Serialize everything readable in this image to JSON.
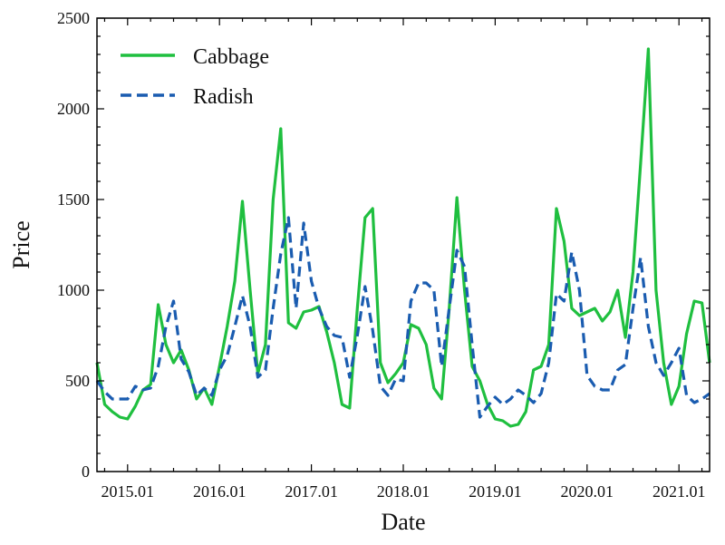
{
  "chart_data": {
    "type": "line",
    "title": "",
    "xlabel": "Date",
    "ylabel": "Price",
    "ylim": [
      0,
      2500
    ],
    "yticks": [
      0,
      500,
      1000,
      1500,
      2000,
      2500
    ],
    "xticks": [
      "2015.01",
      "2016.01",
      "2017.01",
      "2018.01",
      "2019.01",
      "2020.01",
      "2021.01"
    ],
    "xrange": [
      "2014.09",
      "2021.05"
    ],
    "grid": false,
    "legend_position": "top-left",
    "x": [
      "2014.09",
      "2014.10",
      "2014.11",
      "2014.12",
      "2015.01",
      "2015.02",
      "2015.03",
      "2015.04",
      "2015.05",
      "2015.06",
      "2015.07",
      "2015.08",
      "2015.09",
      "2015.10",
      "2015.11",
      "2015.12",
      "2016.01",
      "2016.02",
      "2016.03",
      "2016.04",
      "2016.05",
      "2016.06",
      "2016.07",
      "2016.08",
      "2016.09",
      "2016.10",
      "2016.11",
      "2016.12",
      "2017.01",
      "2017.02",
      "2017.03",
      "2017.04",
      "2017.05",
      "2017.06",
      "2017.07",
      "2017.08",
      "2017.09",
      "2017.10",
      "2017.11",
      "2017.12",
      "2018.01",
      "2018.02",
      "2018.03",
      "2018.04",
      "2018.05",
      "2018.06",
      "2018.07",
      "2018.08",
      "2018.09",
      "2018.10",
      "2018.11",
      "2018.12",
      "2019.01",
      "2019.02",
      "2019.03",
      "2019.04",
      "2019.05",
      "2019.06",
      "2019.07",
      "2019.08",
      "2019.09",
      "2019.10",
      "2019.11",
      "2019.12",
      "2020.01",
      "2020.02",
      "2020.03",
      "2020.04",
      "2020.05",
      "2020.06",
      "2020.07",
      "2020.08",
      "2020.09",
      "2020.10",
      "2020.11",
      "2020.12",
      "2021.01",
      "2021.02",
      "2021.03",
      "2021.04",
      "2021.05"
    ],
    "series": [
      {
        "name": "Cabbage",
        "color": "#1fbf3f",
        "style": "solid",
        "values": [
          600,
          370,
          330,
          300,
          290,
          360,
          450,
          480,
          920,
          700,
          600,
          670,
          560,
          400,
          460,
          370,
          580,
          800,
          1050,
          1490,
          1000,
          540,
          700,
          1500,
          1890,
          820,
          790,
          880,
          890,
          910,
          770,
          600,
          370,
          350,
          900,
          1400,
          1450,
          600,
          490,
          540,
          600,
          810,
          790,
          700,
          460,
          400,
          900,
          1510,
          1000,
          580,
          500,
          370,
          290,
          280,
          250,
          260,
          330,
          560,
          580,
          700,
          1450,
          1270,
          900,
          860,
          880,
          900,
          830,
          880,
          1000,
          740,
          1100,
          1700,
          2330,
          1000,
          600,
          370,
          470,
          760,
          940,
          930,
          600
        ]
      },
      {
        "name": "Radish",
        "color": "#1a5cb0",
        "style": "dashed",
        "values": [
          500,
          440,
          400,
          400,
          400,
          470,
          450,
          460,
          580,
          800,
          940,
          620,
          550,
          420,
          460,
          420,
          560,
          640,
          800,
          970,
          800,
          520,
          560,
          900,
          1200,
          1400,
          900,
          1370,
          1050,
          900,
          800,
          750,
          740,
          520,
          750,
          1020,
          780,
          470,
          420,
          510,
          500,
          940,
          1040,
          1040,
          1000,
          580,
          900,
          1220,
          1130,
          700,
          300,
          360,
          410,
          370,
          400,
          450,
          420,
          380,
          430,
          600,
          980,
          940,
          1210,
          1000,
          530,
          470,
          450,
          450,
          560,
          590,
          900,
          1180,
          800,
          600,
          530,
          600,
          680,
          420,
          380,
          400,
          430
        ]
      }
    ]
  }
}
